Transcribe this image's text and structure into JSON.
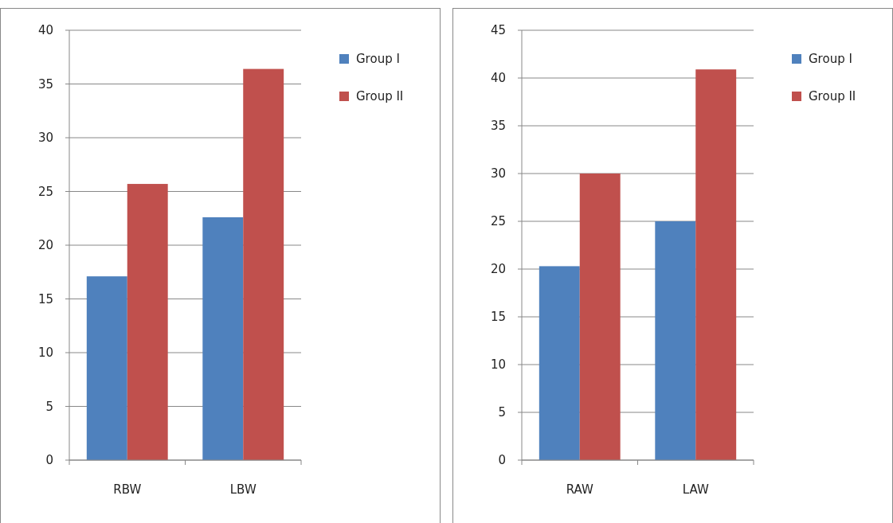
{
  "chart_data": [
    {
      "type": "bar",
      "categories": [
        "RBW",
        "LBW"
      ],
      "series": [
        {
          "name": "Group I",
          "color": "#4f81bd",
          "values": [
            17.1,
            22.6
          ]
        },
        {
          "name": "Group II",
          "color": "#c0504d",
          "values": [
            25.7,
            36.4
          ]
        }
      ],
      "ylim": [
        0,
        40
      ],
      "yticks": [
        0,
        5,
        10,
        15,
        20,
        25,
        30,
        35,
        40
      ],
      "grid": "y",
      "legend": "top right"
    },
    {
      "type": "bar",
      "categories": [
        "RAW",
        "LAW"
      ],
      "series": [
        {
          "name": "Group I",
          "color": "#4f81bd",
          "values": [
            20.3,
            25.0
          ]
        },
        {
          "name": "Group II",
          "color": "#c0504d",
          "values": [
            30.0,
            40.9
          ]
        }
      ],
      "ylim": [
        0,
        45
      ],
      "yticks": [
        0,
        5,
        10,
        15,
        20,
        25,
        30,
        35,
        40,
        45
      ],
      "grid": "y",
      "legend": "top right"
    }
  ]
}
